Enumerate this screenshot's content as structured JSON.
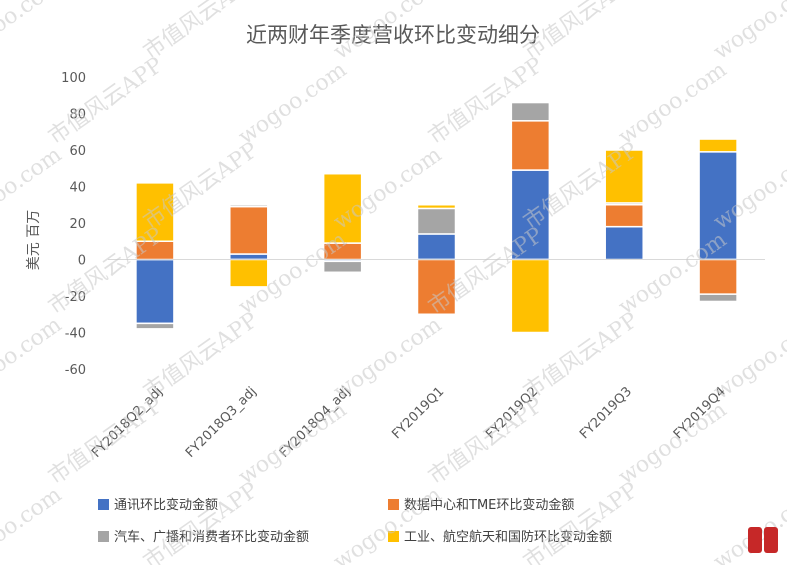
{
  "chart_data": {
    "type": "bar",
    "stacked": true,
    "title": "近两财年季度营收环比变动细分",
    "xlabel": "",
    "ylabel": "美元 百万",
    "ylim": [
      -60,
      100
    ],
    "yticks": [
      -60,
      -40,
      -20,
      0,
      20,
      40,
      60,
      80,
      100
    ],
    "grid": false,
    "legend_position": "bottom",
    "categories": [
      "FY2018Q2_adj",
      "FY2018Q3_adj",
      "FY2018Q4_adj",
      "FY2019Q1",
      "FY2019Q2",
      "FY2019Q3",
      "FY2019Q4"
    ],
    "series": [
      {
        "name": "通讯环比变动金额",
        "color": "#4472c4",
        "values": [
          -35,
          3,
          -1,
          14,
          49,
          18,
          59
        ]
      },
      {
        "name": "数据中心和TME环比变动金额",
        "color": "#ed7d31",
        "values": [
          10,
          26,
          9,
          -30,
          27,
          12,
          -19
        ]
      },
      {
        "name": "汽车、广播和消费者环比变动金额",
        "color": "#a5a5a5",
        "values": [
          -3,
          1,
          -6,
          14,
          10,
          1,
          -4
        ]
      },
      {
        "name": "工业、航空航天和国防环比变动金额",
        "color": "#ffc000",
        "values": [
          32,
          -15,
          38,
          2,
          -40,
          29,
          7
        ]
      }
    ]
  },
  "watermark": {
    "texts": [
      "wogoo.com",
      "市值风云APP"
    ]
  }
}
